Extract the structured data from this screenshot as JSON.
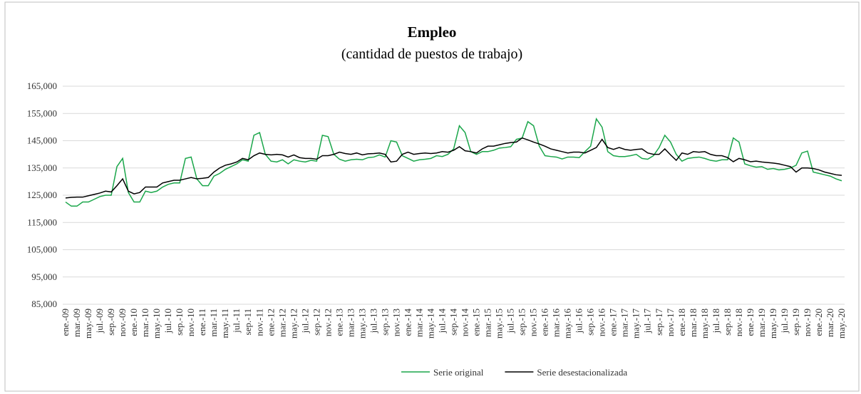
{
  "chart_data": {
    "type": "line",
    "title": "Empleo",
    "subtitle": "(cantidad de puestos de trabajo)",
    "categories": [
      "ene.-09",
      null,
      "mar.-09",
      null,
      "may.-09",
      null,
      "jul.-09",
      null,
      "sep.-09",
      null,
      "nov.-09",
      null,
      "ene.-10",
      null,
      "mar.-10",
      null,
      "may.-10",
      null,
      "jul.-10",
      null,
      "sep.-10",
      null,
      "nov.-10",
      null,
      "ene.-11",
      null,
      "mar.-11",
      null,
      "may.-11",
      null,
      "jul.-11",
      null,
      "sep.-11",
      null,
      "nov.-11",
      null,
      "ene.-12",
      null,
      "mar.-12",
      null,
      "may.-12",
      null,
      "jul.-12",
      null,
      "sep.-12",
      null,
      "nov.-12",
      null,
      "ene.-13",
      null,
      "mar.-13",
      null,
      "may.-13",
      null,
      "jul.-13",
      null,
      "sep.-13",
      null,
      "nov.-13",
      null,
      "ene.-14",
      null,
      "mar.-14",
      null,
      "may.-14",
      null,
      "jul.-14",
      null,
      "sep.-14",
      null,
      "nov.-14",
      null,
      "ene.-15",
      null,
      "mar.-15",
      null,
      "may.-15",
      null,
      "jul.-15",
      null,
      "sep.-15",
      null,
      "nov.-15",
      null,
      "ene.-16",
      null,
      "mar.-16",
      null,
      "may.-16",
      null,
      "jul.-16",
      null,
      "sep.-16",
      null,
      "nov.-16",
      null,
      "ene.-17",
      null,
      "mar.-17",
      null,
      "may.-17",
      null,
      "jul.-17",
      null,
      "sep.-17",
      null,
      "nov.-17",
      null,
      "ene.-18",
      null,
      "mar.-18",
      null,
      "may.-18",
      null,
      "jul.-18",
      null,
      "sep.-18",
      null,
      "nov.-18",
      null,
      "ene.-19",
      null,
      "mar.-19",
      null,
      "may.-19",
      null,
      "jul.-19",
      null,
      "sep.-19",
      null,
      "nov.-19",
      null,
      "ene.-20",
      null,
      "mar.-20",
      null,
      "may.-20"
    ],
    "series": [
      {
        "name": "Serie original",
        "color": "#1aa64a",
        "values": [
          122500,
          121000,
          121000,
          122500,
          122500,
          123500,
          124500,
          125000,
          125000,
          135500,
          138500,
          126000,
          122500,
          122500,
          126500,
          126000,
          126500,
          128000,
          129000,
          129500,
          129500,
          138500,
          139000,
          131000,
          128500,
          128500,
          132000,
          133000,
          134500,
          135500,
          136500,
          138000,
          137500,
          147000,
          148000,
          140000,
          137500,
          137200,
          138000,
          136500,
          138000,
          137500,
          137200,
          137800,
          137500,
          147000,
          146500,
          140000,
          138200,
          137500,
          138000,
          138200,
          138000,
          138800,
          139000,
          139800,
          139000,
          145000,
          144500,
          139500,
          138500,
          137500,
          138000,
          138200,
          138500,
          139500,
          139200,
          140000,
          142000,
          150500,
          148000,
          141000,
          140000,
          141000,
          141000,
          141500,
          142300,
          142500,
          142800,
          145500,
          146000,
          152000,
          150500,
          143000,
          139500,
          139200,
          139000,
          138300,
          139000,
          139000,
          138800,
          141000,
          143000,
          153000,
          150000,
          141000,
          139500,
          139200,
          139200,
          139500,
          140000,
          138500,
          138200,
          139500,
          142500,
          147000,
          144500,
          140000,
          137500,
          138500,
          138800,
          139000,
          138500,
          137800,
          137500,
          138000,
          138000,
          146000,
          144500,
          136500,
          135800,
          135300,
          135500,
          134500,
          134800,
          134300,
          134500,
          135000,
          136000,
          140500,
          141200,
          133500,
          133000,
          132500,
          132000,
          131000,
          130300
        ]
      },
      {
        "name": "Serie desestacionalizada",
        "color": "#000000",
        "values": [
          124000,
          124200,
          124300,
          124300,
          124800,
          125300,
          125800,
          126500,
          126200,
          128500,
          131000,
          126500,
          125500,
          126000,
          128000,
          128000,
          128000,
          129500,
          130000,
          130500,
          130500,
          131000,
          131500,
          131000,
          131200,
          131500,
          133500,
          135000,
          136000,
          136500,
          137200,
          138500,
          138000,
          139500,
          140500,
          140000,
          139800,
          140000,
          139800,
          139000,
          139800,
          138800,
          138500,
          138500,
          138200,
          139500,
          139500,
          140000,
          140800,
          140300,
          140000,
          140500,
          139800,
          140200,
          140300,
          140500,
          140000,
          137200,
          137500,
          140000,
          140800,
          140000,
          140300,
          140500,
          140300,
          140500,
          141000,
          140800,
          141500,
          142800,
          141300,
          141000,
          140500,
          142000,
          143000,
          143000,
          143500,
          144000,
          144300,
          144500,
          146000,
          145300,
          144500,
          143800,
          143000,
          142000,
          141500,
          141000,
          140500,
          140800,
          140800,
          140500,
          141500,
          142500,
          145500,
          142500,
          141800,
          142500,
          141800,
          141500,
          141800,
          142000,
          140500,
          140000,
          140000,
          142000,
          139800,
          137800,
          140500,
          140000,
          141000,
          140800,
          141000,
          140000,
          139500,
          139500,
          138800,
          137300,
          138500,
          138000,
          137300,
          137500,
          137200,
          137000,
          136800,
          136500,
          136000,
          135500,
          133500,
          135000,
          135000,
          134800,
          134300,
          133500,
          133000,
          132500,
          132300
        ]
      }
    ],
    "ylim": [
      85000,
      165000
    ],
    "yticks": [
      {
        "value": 85000,
        "label": "85,000"
      },
      {
        "value": 95000,
        "label": "95,000"
      },
      {
        "value": 105000,
        "label": "105,000"
      },
      {
        "value": 115000,
        "label": "115,000"
      },
      {
        "value": 125000,
        "label": "125,000"
      },
      {
        "value": 135000,
        "label": "135,000"
      },
      {
        "value": 145000,
        "label": "145,000"
      },
      {
        "value": 155000,
        "label": "155,000"
      },
      {
        "value": 165000,
        "label": "165,000"
      }
    ],
    "grid": true
  }
}
